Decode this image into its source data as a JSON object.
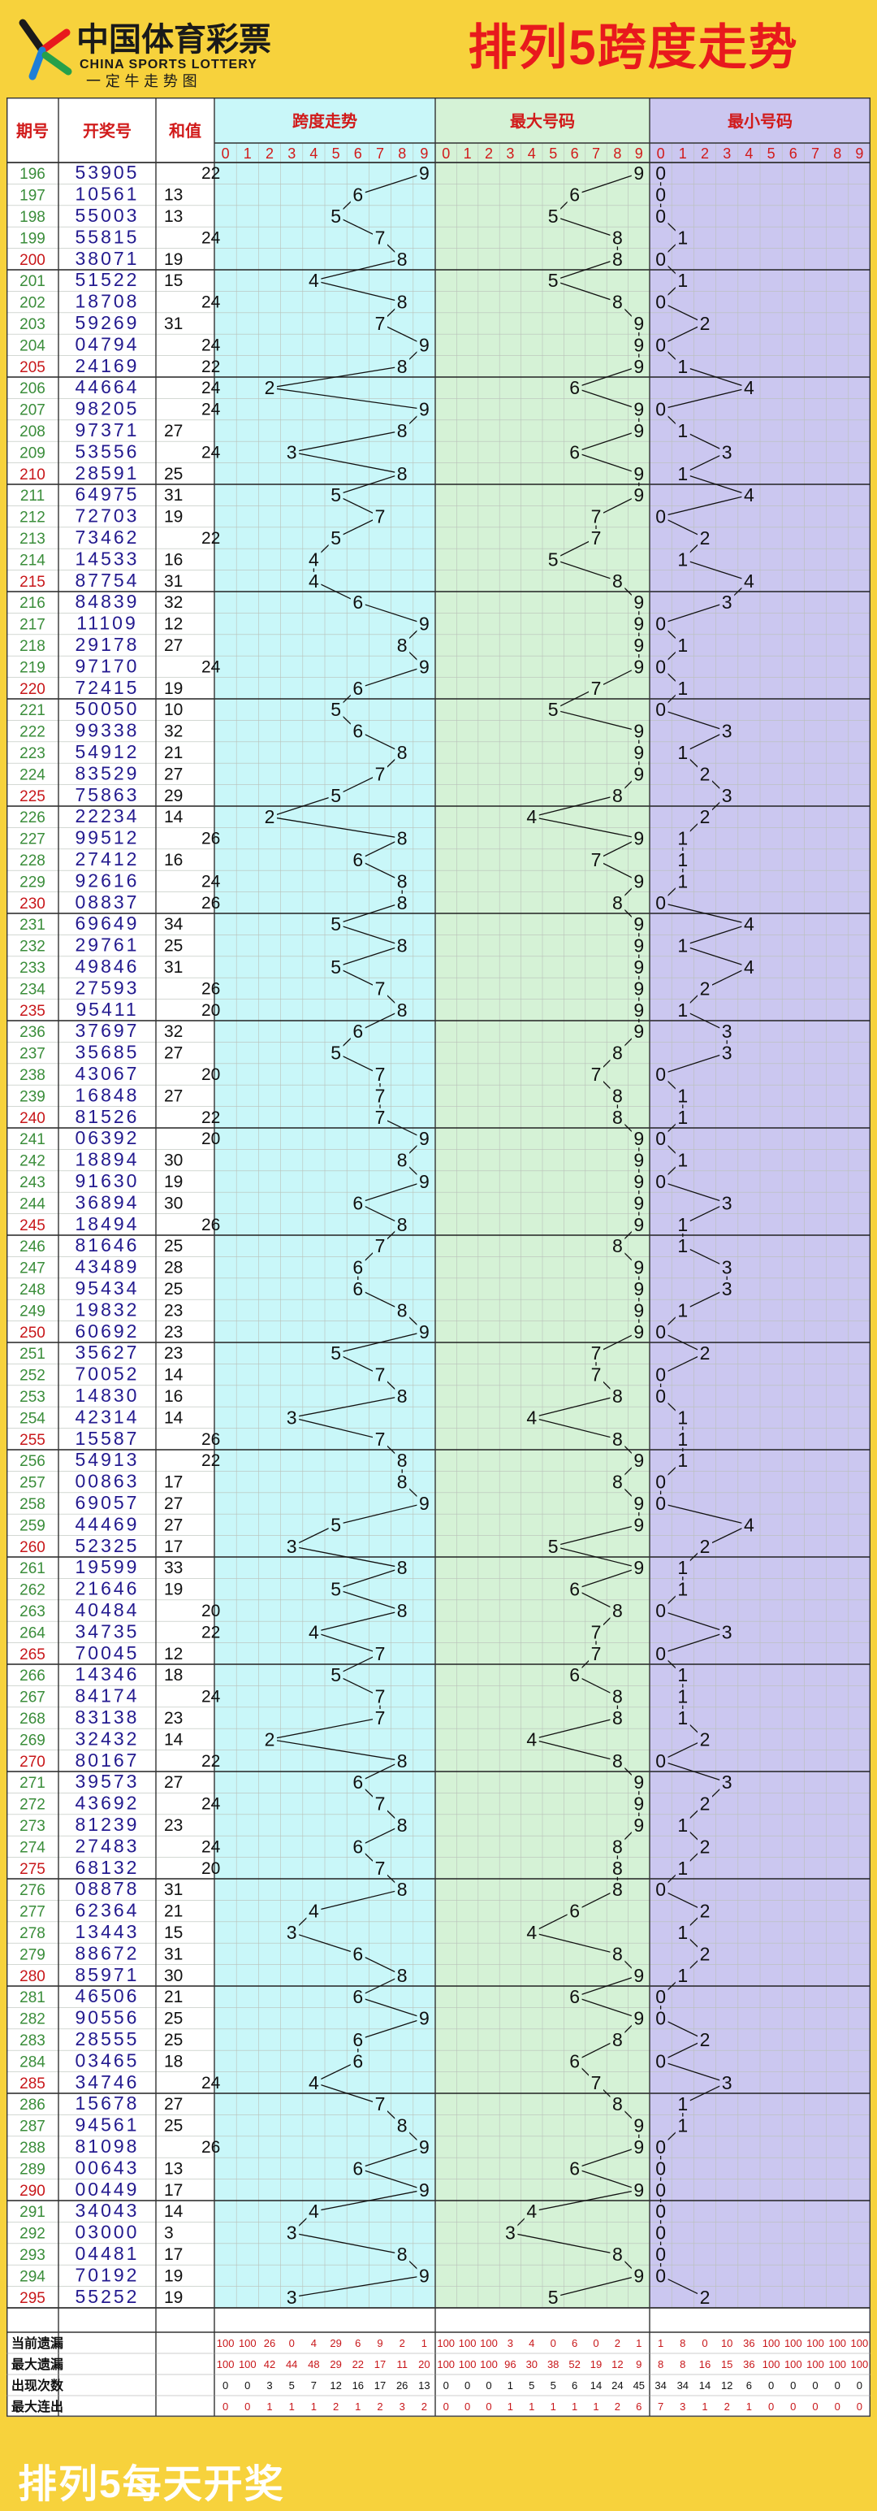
{
  "header": {
    "logo_cn": "中国体育彩票",
    "logo_en": "CHINA SPORTS LOTTERY",
    "logo_slogan": "一 定 牛 走 势 图",
    "title": "排列5跨度走势"
  },
  "footer": {
    "text": "排列5每天开奖"
  },
  "colors": {
    "header_bg": "#f7d23c",
    "title_red": "#e8191d",
    "span_bg": "#c9f7f9",
    "max_bg": "#d5f2d6",
    "min_bg": "#cbc7f0",
    "issue_green": "#3a8d3a",
    "number_blue": "#231a8f"
  },
  "chart_data": {
    "type": "table",
    "columns": {
      "issue": "期号",
      "draw": "开奖号",
      "sum": "和值",
      "span": "跨度走势",
      "max": "最大号码",
      "min": "最小号码"
    },
    "digits": [
      "0",
      "1",
      "2",
      "3",
      "4",
      "5",
      "6",
      "7",
      "8",
      "9"
    ],
    "draws": [
      {
        "issue": "196",
        "number": "53905",
        "sum": 22,
        "span": 9,
        "max": 9,
        "min": 0
      },
      {
        "issue": "197",
        "number": "10561",
        "sum": 13,
        "span": 6,
        "max": 6,
        "min": 0
      },
      {
        "issue": "198",
        "number": "55003",
        "sum": 13,
        "span": 5,
        "max": 5,
        "min": 0
      },
      {
        "issue": "199",
        "number": "55815",
        "sum": 24,
        "span": 7,
        "max": 8,
        "min": 1
      },
      {
        "issue": "200",
        "number": "38071",
        "sum": 19,
        "span": 8,
        "max": 8,
        "min": 0
      },
      {
        "issue": "201",
        "number": "51522",
        "sum": 15,
        "span": 4,
        "max": 5,
        "min": 1
      },
      {
        "issue": "202",
        "number": "18708",
        "sum": 24,
        "span": 8,
        "max": 8,
        "min": 0
      },
      {
        "issue": "203",
        "number": "59269",
        "sum": 31,
        "span": 7,
        "max": 9,
        "min": 2
      },
      {
        "issue": "204",
        "number": "04794",
        "sum": 24,
        "span": 9,
        "max": 9,
        "min": 0
      },
      {
        "issue": "205",
        "number": "24169",
        "sum": 22,
        "span": 8,
        "max": 9,
        "min": 1
      },
      {
        "issue": "206",
        "number": "44664",
        "sum": 24,
        "span": 2,
        "max": 6,
        "min": 4
      },
      {
        "issue": "207",
        "number": "98205",
        "sum": 24,
        "span": 9,
        "max": 9,
        "min": 0
      },
      {
        "issue": "208",
        "number": "97371",
        "sum": 27,
        "span": 8,
        "max": 9,
        "min": 1
      },
      {
        "issue": "209",
        "number": "53556",
        "sum": 24,
        "span": 3,
        "max": 6,
        "min": 3
      },
      {
        "issue": "210",
        "number": "28591",
        "sum": 25,
        "span": 8,
        "max": 9,
        "min": 1
      },
      {
        "issue": "211",
        "number": "64975",
        "sum": 31,
        "span": 5,
        "max": 9,
        "min": 4
      },
      {
        "issue": "212",
        "number": "72703",
        "sum": 19,
        "span": 7,
        "max": 7,
        "min": 0
      },
      {
        "issue": "213",
        "number": "73462",
        "sum": 22,
        "span": 5,
        "max": 7,
        "min": 2
      },
      {
        "issue": "214",
        "number": "14533",
        "sum": 16,
        "span": 4,
        "max": 5,
        "min": 1
      },
      {
        "issue": "215",
        "number": "87754",
        "sum": 31,
        "span": 4,
        "max": 8,
        "min": 4
      },
      {
        "issue": "216",
        "number": "84839",
        "sum": 32,
        "span": 6,
        "max": 9,
        "min": 3
      },
      {
        "issue": "217",
        "number": "11109",
        "sum": 12,
        "span": 9,
        "max": 9,
        "min": 0
      },
      {
        "issue": "218",
        "number": "29178",
        "sum": 27,
        "span": 8,
        "max": 9,
        "min": 1
      },
      {
        "issue": "219",
        "number": "97170",
        "sum": 24,
        "span": 9,
        "max": 9,
        "min": 0
      },
      {
        "issue": "220",
        "number": "72415",
        "sum": 19,
        "span": 6,
        "max": 7,
        "min": 1
      },
      {
        "issue": "221",
        "number": "50050",
        "sum": 10,
        "span": 5,
        "max": 5,
        "min": 0
      },
      {
        "issue": "222",
        "number": "99338",
        "sum": 32,
        "span": 6,
        "max": 9,
        "min": 3
      },
      {
        "issue": "223",
        "number": "54912",
        "sum": 21,
        "span": 8,
        "max": 9,
        "min": 1
      },
      {
        "issue": "224",
        "number": "83529",
        "sum": 27,
        "span": 7,
        "max": 9,
        "min": 2
      },
      {
        "issue": "225",
        "number": "75863",
        "sum": 29,
        "span": 5,
        "max": 8,
        "min": 3
      },
      {
        "issue": "226",
        "number": "22234",
        "sum": 14,
        "span": 2,
        "max": 4,
        "min": 2
      },
      {
        "issue": "227",
        "number": "99512",
        "sum": 26,
        "span": 8,
        "max": 9,
        "min": 1
      },
      {
        "issue": "228",
        "number": "27412",
        "sum": 16,
        "span": 6,
        "max": 7,
        "min": 1
      },
      {
        "issue": "229",
        "number": "92616",
        "sum": 24,
        "span": 8,
        "max": 9,
        "min": 1
      },
      {
        "issue": "230",
        "number": "08837",
        "sum": 26,
        "span": 8,
        "max": 8,
        "min": 0
      },
      {
        "issue": "231",
        "number": "69649",
        "sum": 34,
        "span": 5,
        "max": 9,
        "min": 4
      },
      {
        "issue": "232",
        "number": "29761",
        "sum": 25,
        "span": 8,
        "max": 9,
        "min": 1
      },
      {
        "issue": "233",
        "number": "49846",
        "sum": 31,
        "span": 5,
        "max": 9,
        "min": 4
      },
      {
        "issue": "234",
        "number": "27593",
        "sum": 26,
        "span": 7,
        "max": 9,
        "min": 2
      },
      {
        "issue": "235",
        "number": "95411",
        "sum": 20,
        "span": 8,
        "max": 9,
        "min": 1
      },
      {
        "issue": "236",
        "number": "37697",
        "sum": 32,
        "span": 6,
        "max": 9,
        "min": 3
      },
      {
        "issue": "237",
        "number": "35685",
        "sum": 27,
        "span": 5,
        "max": 8,
        "min": 3
      },
      {
        "issue": "238",
        "number": "43067",
        "sum": 20,
        "span": 7,
        "max": 7,
        "min": 0
      },
      {
        "issue": "239",
        "number": "16848",
        "sum": 27,
        "span": 7,
        "max": 8,
        "min": 1
      },
      {
        "issue": "240",
        "number": "81526",
        "sum": 22,
        "span": 7,
        "max": 8,
        "min": 1
      },
      {
        "issue": "241",
        "number": "06392",
        "sum": 20,
        "span": 9,
        "max": 9,
        "min": 0
      },
      {
        "issue": "242",
        "number": "18894",
        "sum": 30,
        "span": 8,
        "max": 9,
        "min": 1
      },
      {
        "issue": "243",
        "number": "91630",
        "sum": 19,
        "span": 9,
        "max": 9,
        "min": 0
      },
      {
        "issue": "244",
        "number": "36894",
        "sum": 30,
        "span": 6,
        "max": 9,
        "min": 3
      },
      {
        "issue": "245",
        "number": "18494",
        "sum": 26,
        "span": 8,
        "max": 9,
        "min": 1
      },
      {
        "issue": "246",
        "number": "81646",
        "sum": 25,
        "span": 7,
        "max": 8,
        "min": 1
      },
      {
        "issue": "247",
        "number": "43489",
        "sum": 28,
        "span": 6,
        "max": 9,
        "min": 3
      },
      {
        "issue": "248",
        "number": "95434",
        "sum": 25,
        "span": 6,
        "max": 9,
        "min": 3
      },
      {
        "issue": "249",
        "number": "19832",
        "sum": 23,
        "span": 8,
        "max": 9,
        "min": 1
      },
      {
        "issue": "250",
        "number": "60692",
        "sum": 23,
        "span": 9,
        "max": 9,
        "min": 0
      },
      {
        "issue": "251",
        "number": "35627",
        "sum": 23,
        "span": 5,
        "max": 7,
        "min": 2
      },
      {
        "issue": "252",
        "number": "70052",
        "sum": 14,
        "span": 7,
        "max": 7,
        "min": 0
      },
      {
        "issue": "253",
        "number": "14830",
        "sum": 16,
        "span": 8,
        "max": 8,
        "min": 0
      },
      {
        "issue": "254",
        "number": "42314",
        "sum": 14,
        "span": 3,
        "max": 4,
        "min": 1
      },
      {
        "issue": "255",
        "number": "15587",
        "sum": 26,
        "span": 7,
        "max": 8,
        "min": 1
      },
      {
        "issue": "256",
        "number": "54913",
        "sum": 22,
        "span": 8,
        "max": 9,
        "min": 1
      },
      {
        "issue": "257",
        "number": "00863",
        "sum": 17,
        "span": 8,
        "max": 8,
        "min": 0
      },
      {
        "issue": "258",
        "number": "69057",
        "sum": 27,
        "span": 9,
        "max": 9,
        "min": 0
      },
      {
        "issue": "259",
        "number": "44469",
        "sum": 27,
        "span": 5,
        "max": 9,
        "min": 4
      },
      {
        "issue": "260",
        "number": "52325",
        "sum": 17,
        "span": 3,
        "max": 5,
        "min": 2
      },
      {
        "issue": "261",
        "number": "19599",
        "sum": 33,
        "span": 8,
        "max": 9,
        "min": 1
      },
      {
        "issue": "262",
        "number": "21646",
        "sum": 19,
        "span": 5,
        "max": 6,
        "min": 1
      },
      {
        "issue": "263",
        "number": "40484",
        "sum": 20,
        "span": 8,
        "max": 8,
        "min": 0
      },
      {
        "issue": "264",
        "number": "34735",
        "sum": 22,
        "span": 4,
        "max": 7,
        "min": 3
      },
      {
        "issue": "265",
        "number": "70045",
        "sum": 12,
        "span": 7,
        "max": 7,
        "min": 0
      },
      {
        "issue": "266",
        "number": "14346",
        "sum": 18,
        "span": 5,
        "max": 6,
        "min": 1
      },
      {
        "issue": "267",
        "number": "84174",
        "sum": 24,
        "span": 7,
        "max": 8,
        "min": 1
      },
      {
        "issue": "268",
        "number": "83138",
        "sum": 23,
        "span": 7,
        "max": 8,
        "min": 1
      },
      {
        "issue": "269",
        "number": "32432",
        "sum": 14,
        "span": 2,
        "max": 4,
        "min": 2
      },
      {
        "issue": "270",
        "number": "80167",
        "sum": 22,
        "span": 8,
        "max": 8,
        "min": 0
      },
      {
        "issue": "271",
        "number": "39573",
        "sum": 27,
        "span": 6,
        "max": 9,
        "min": 3
      },
      {
        "issue": "272",
        "number": "43692",
        "sum": 24,
        "span": 7,
        "max": 9,
        "min": 2
      },
      {
        "issue": "273",
        "number": "81239",
        "sum": 23,
        "span": 8,
        "max": 9,
        "min": 1
      },
      {
        "issue": "274",
        "number": "27483",
        "sum": 24,
        "span": 6,
        "max": 8,
        "min": 2
      },
      {
        "issue": "275",
        "number": "68132",
        "sum": 20,
        "span": 7,
        "max": 8,
        "min": 1
      },
      {
        "issue": "276",
        "number": "08878",
        "sum": 31,
        "span": 8,
        "max": 8,
        "min": 0
      },
      {
        "issue": "277",
        "number": "62364",
        "sum": 21,
        "span": 4,
        "max": 6,
        "min": 2
      },
      {
        "issue": "278",
        "number": "13443",
        "sum": 15,
        "span": 3,
        "max": 4,
        "min": 1
      },
      {
        "issue": "279",
        "number": "88672",
        "sum": 31,
        "span": 6,
        "max": 8,
        "min": 2
      },
      {
        "issue": "280",
        "number": "85971",
        "sum": 30,
        "span": 8,
        "max": 9,
        "min": 1
      },
      {
        "issue": "281",
        "number": "46506",
        "sum": 21,
        "span": 6,
        "max": 6,
        "min": 0
      },
      {
        "issue": "282",
        "number": "90556",
        "sum": 25,
        "span": 9,
        "max": 9,
        "min": 0
      },
      {
        "issue": "283",
        "number": "28555",
        "sum": 25,
        "span": 6,
        "max": 8,
        "min": 2
      },
      {
        "issue": "284",
        "number": "03465",
        "sum": 18,
        "span": 6,
        "max": 6,
        "min": 0
      },
      {
        "issue": "285",
        "number": "34746",
        "sum": 24,
        "span": 4,
        "max": 7,
        "min": 3
      },
      {
        "issue": "286",
        "number": "15678",
        "sum": 27,
        "span": 7,
        "max": 8,
        "min": 1
      },
      {
        "issue": "287",
        "number": "94561",
        "sum": 25,
        "span": 8,
        "max": 9,
        "min": 1
      },
      {
        "issue": "288",
        "number": "81098",
        "sum": 26,
        "span": 9,
        "max": 9,
        "min": 0
      },
      {
        "issue": "289",
        "number": "00643",
        "sum": 13,
        "span": 6,
        "max": 6,
        "min": 0
      },
      {
        "issue": "290",
        "number": "00449",
        "sum": 17,
        "span": 9,
        "max": 9,
        "min": 0
      },
      {
        "issue": "291",
        "number": "34043",
        "sum": 14,
        "span": 4,
        "max": 4,
        "min": 0
      },
      {
        "issue": "292",
        "number": "03000",
        "sum": 3,
        "span": 3,
        "max": 3,
        "min": 0
      },
      {
        "issue": "293",
        "number": "04481",
        "sum": 17,
        "span": 8,
        "max": 8,
        "min": 0
      },
      {
        "issue": "294",
        "number": "70192",
        "sum": 19,
        "span": 9,
        "max": 9,
        "min": 0
      },
      {
        "issue": "295",
        "number": "55252",
        "sum": 19,
        "span": 3,
        "max": 5,
        "min": 2
      }
    ],
    "stats": [
      {
        "label": "当前遗漏",
        "values": [
          "100",
          "100",
          "26",
          "0",
          "4",
          "29",
          "6",
          "9",
          "2",
          "1",
          "100",
          "100",
          "100",
          "3",
          "4",
          "0",
          "6",
          "0",
          "2",
          "1",
          "1",
          "8",
          "0",
          "10",
          "36",
          "100",
          "100",
          "100",
          "100",
          "100"
        ]
      },
      {
        "label": "最大遗漏",
        "values": [
          "100",
          "100",
          "42",
          "44",
          "48",
          "29",
          "22",
          "17",
          "11",
          "20",
          "100",
          "100",
          "100",
          "96",
          "30",
          "38",
          "52",
          "19",
          "12",
          "9",
          "8",
          "8",
          "16",
          "15",
          "36",
          "100",
          "100",
          "100",
          "100",
          "100"
        ]
      },
      {
        "label": "出现次数",
        "values": [
          "0",
          "0",
          "3",
          "5",
          "7",
          "12",
          "16",
          "17",
          "26",
          "13",
          "0",
          "0",
          "0",
          "1",
          "5",
          "5",
          "6",
          "14",
          "24",
          "45",
          "34",
          "34",
          "14",
          "12",
          "6",
          "0",
          "0",
          "0",
          "0",
          "0"
        ]
      },
      {
        "label": "最大连出",
        "values": [
          "0",
          "0",
          "1",
          "1",
          "1",
          "2",
          "1",
          "2",
          "3",
          "2",
          "0",
          "0",
          "0",
          "1",
          "1",
          "1",
          "1",
          "1",
          "2",
          "6",
          "7",
          "3",
          "1",
          "2",
          "1",
          "0",
          "0",
          "0",
          "0",
          "0"
        ]
      }
    ]
  }
}
